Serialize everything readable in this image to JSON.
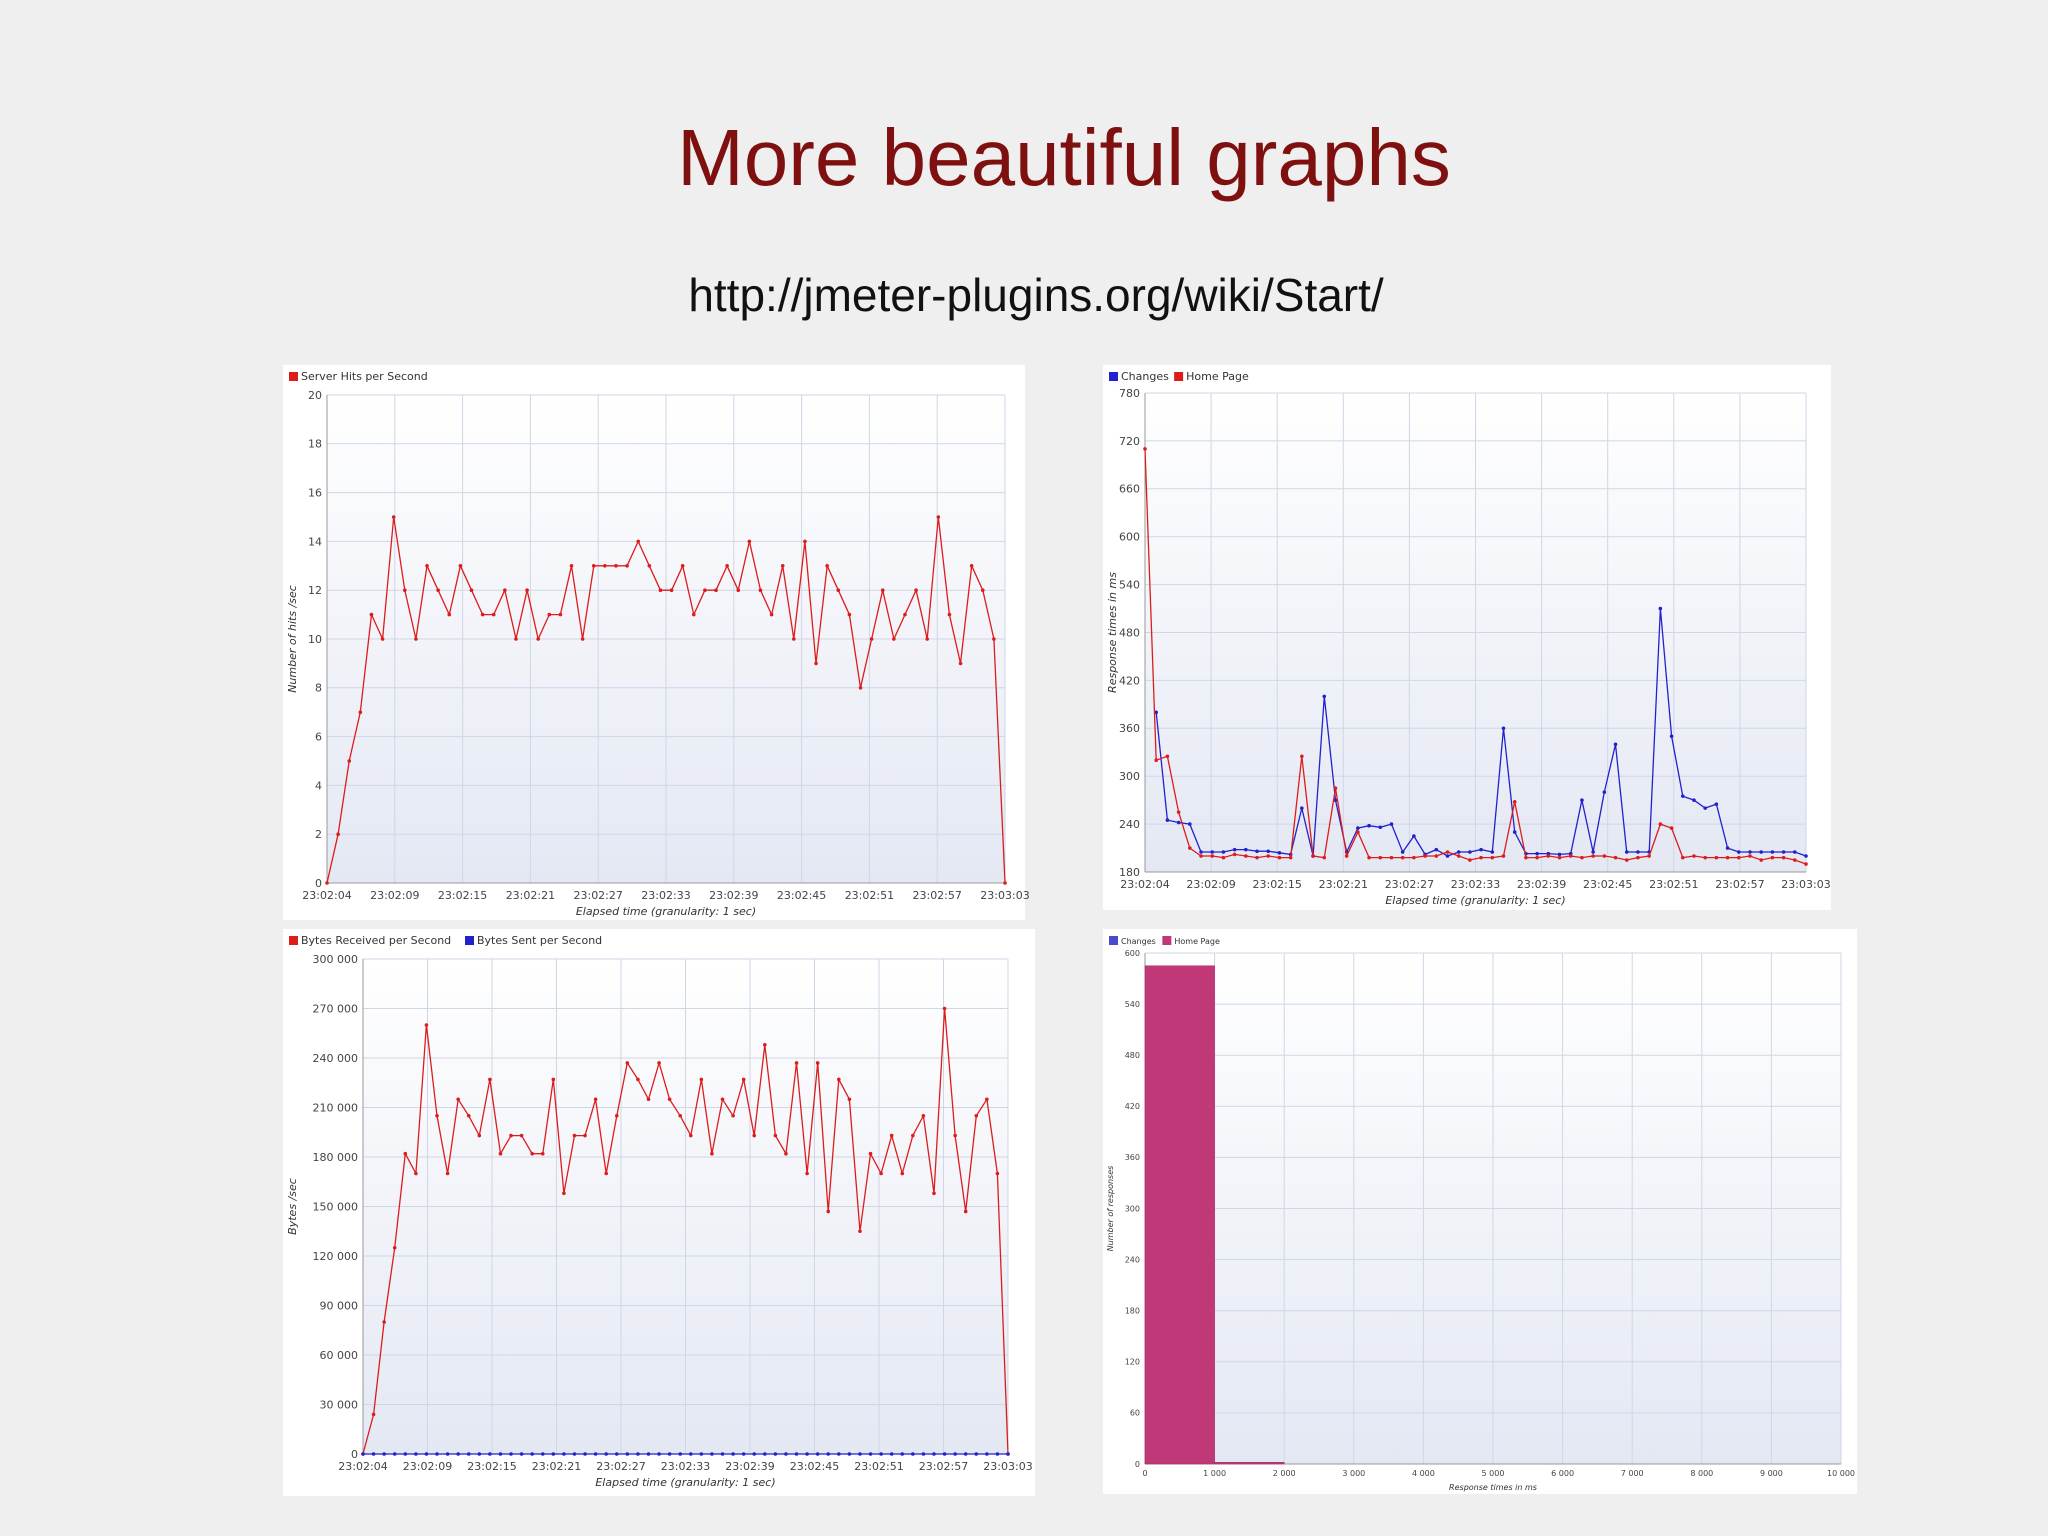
{
  "slide": {
    "title": "More beautiful graphs",
    "url": "http://jmeter-plugins.org/wiki/Start/"
  },
  "chart_data": [
    {
      "type": "line",
      "legend_position": "top-left",
      "ylabel": "Number of hits /sec",
      "xlabel": "Elapsed time (granularity: 1 sec)",
      "ylim": [
        0,
        20
      ],
      "yticks": [
        0,
        2,
        4,
        6,
        8,
        10,
        12,
        14,
        16,
        18,
        20
      ],
      "ytick_labels": [
        "0",
        "2",
        "4",
        "6",
        "8",
        "10",
        "12",
        "14",
        "16",
        "18",
        "20"
      ],
      "xtick_labels": [
        "23:02:04",
        "23:02:09",
        "23:02:15",
        "23:02:21",
        "23:02:27",
        "23:02:33",
        "23:02:39",
        "23:02:45",
        "23:02:51",
        "23:02:57",
        "23:03:03"
      ],
      "grid": true,
      "series": [
        {
          "name": "Server Hits per Second",
          "color": "#dd1c1c",
          "values": [
            0,
            2,
            5,
            7,
            11,
            10,
            15,
            12,
            10,
            13,
            12,
            11,
            13,
            12,
            11,
            11,
            12,
            10,
            12,
            10,
            11,
            11,
            13,
            10,
            13,
            13,
            13,
            13,
            14,
            13,
            12,
            12,
            13,
            11,
            12,
            12,
            13,
            12,
            14,
            12,
            11,
            13,
            10,
            14,
            9,
            13,
            12,
            11,
            8,
            10,
            12,
            10,
            11,
            12,
            10,
            15,
            11,
            9,
            13,
            12,
            10,
            0
          ]
        }
      ]
    },
    {
      "type": "line",
      "legend_position": "top-left",
      "ylabel": "Response times in ms",
      "xlabel": "Elapsed time (granularity: 1 sec)",
      "ylim": [
        180,
        780
      ],
      "yticks": [
        180,
        240,
        300,
        360,
        420,
        480,
        540,
        600,
        660,
        720,
        780
      ],
      "ytick_labels": [
        "180",
        "240",
        "300",
        "360",
        "420",
        "480",
        "540",
        "600",
        "660",
        "720",
        "780"
      ],
      "xtick_labels": [
        "23:02:04",
        "23:02:09",
        "23:02:15",
        "23:02:21",
        "23:02:27",
        "23:02:33",
        "23:02:39",
        "23:02:45",
        "23:02:51",
        "23:02:57",
        "23:03:03"
      ],
      "grid": true,
      "series": [
        {
          "name": "Changes",
          "color": "#2222cc",
          "values": [
            null,
            380,
            245,
            242,
            240,
            205,
            205,
            205,
            208,
            208,
            206,
            206,
            204,
            202,
            260,
            200,
            400,
            270,
            205,
            235,
            238,
            236,
            240,
            205,
            225,
            202,
            208,
            200,
            205,
            205,
            208,
            205,
            360,
            230,
            203,
            203,
            203,
            202,
            203,
            270,
            205,
            280,
            340,
            205,
            205,
            205,
            510,
            350,
            275,
            270,
            260,
            265,
            210,
            205,
            205,
            205,
            205,
            205,
            205,
            200
          ]
        },
        {
          "name": "Home Page",
          "color": "#dd1c1c",
          "values": [
            710,
            320,
            325,
            255,
            210,
            200,
            200,
            198,
            202,
            200,
            198,
            200,
            198,
            198,
            325,
            200,
            198,
            285,
            200,
            230,
            198,
            198,
            198,
            198,
            198,
            200,
            200,
            205,
            200,
            195,
            198,
            198,
            200,
            268,
            198,
            198,
            200,
            198,
            200,
            198,
            200,
            200,
            198,
            195,
            198,
            200,
            240,
            235,
            198,
            200,
            198,
            198,
            198,
            198,
            200,
            195,
            198,
            198,
            195,
            190
          ]
        }
      ]
    },
    {
      "type": "line",
      "legend_position": "top-left",
      "ylabel": "Bytes /sec",
      "xlabel": "Elapsed time (granularity: 1 sec)",
      "ylim": [
        0,
        300000
      ],
      "yticks": [
        0,
        30000,
        60000,
        90000,
        120000,
        150000,
        180000,
        210000,
        240000,
        270000,
        300000
      ],
      "ytick_labels": [
        "0",
        "30 000",
        "60 000",
        "90 000",
        "120 000",
        "150 000",
        "180 000",
        "210 000",
        "240 000",
        "270 000",
        "300 000"
      ],
      "xtick_labels": [
        "23:02:04",
        "23:02:09",
        "23:02:15",
        "23:02:21",
        "23:02:27",
        "23:02:33",
        "23:02:39",
        "23:02:45",
        "23:02:51",
        "23:02:57",
        "23:03:03"
      ],
      "grid": true,
      "series": [
        {
          "name": "Bytes Received per Second",
          "color": "#dd1c1c",
          "values": [
            0,
            24000,
            80000,
            125000,
            182000,
            170000,
            260000,
            205000,
            170000,
            215000,
            205000,
            193000,
            227000,
            182000,
            193000,
            193000,
            182000,
            182000,
            227000,
            158000,
            193000,
            193000,
            215000,
            170000,
            205000,
            237000,
            227000,
            215000,
            237000,
            215000,
            205000,
            193000,
            227000,
            182000,
            215000,
            205000,
            227000,
            193000,
            248000,
            193000,
            182000,
            237000,
            170000,
            237000,
            147000,
            227000,
            215000,
            135000,
            182000,
            170000,
            193000,
            170000,
            193000,
            205000,
            158000,
            270000,
            193000,
            147000,
            205000,
            215000,
            170000,
            0
          ]
        },
        {
          "name": "Bytes Sent per Second",
          "color": "#2222cc",
          "values": [
            0,
            0,
            0,
            0,
            0,
            0,
            0,
            0,
            0,
            0,
            0,
            0,
            0,
            0,
            0,
            0,
            0,
            0,
            0,
            0,
            0,
            0,
            0,
            0,
            0,
            0,
            0,
            0,
            0,
            0,
            0,
            0,
            0,
            0,
            0,
            0,
            0,
            0,
            0,
            0,
            0,
            0,
            0,
            0,
            0,
            0,
            0,
            0,
            0,
            0,
            0,
            0,
            0,
            0,
            0,
            0,
            0,
            0,
            0,
            0,
            0,
            0
          ]
        }
      ]
    },
    {
      "type": "bar",
      "legend_position": "top-left",
      "ylabel": "Number of responses",
      "xlabel": "Response times in ms",
      "ylim": [
        0,
        600
      ],
      "yticks": [
        0,
        60,
        120,
        180,
        240,
        300,
        360,
        420,
        480,
        540,
        600
      ],
      "ytick_labels": [
        "0",
        "60",
        "120",
        "180",
        "240",
        "300",
        "360",
        "420",
        "480",
        "540",
        "600"
      ],
      "xlim": [
        0,
        10000
      ],
      "xticks": [
        0,
        1000,
        2000,
        3000,
        4000,
        5000,
        6000,
        7000,
        8000,
        9000,
        10000
      ],
      "xtick_labels": [
        "0",
        "1 000",
        "2 000",
        "3 000",
        "4 000",
        "5 000",
        "6 000",
        "7 000",
        "8 000",
        "9 000",
        "10 000"
      ],
      "grid": true,
      "series": [
        {
          "name": "Changes",
          "color": "#4a4acc",
          "bins": []
        },
        {
          "name": "Home Page",
          "color": "#c03878",
          "bins": [
            {
              "x0": 0,
              "x1": 1000,
              "value": 585
            },
            {
              "x0": 1000,
              "x1": 2000,
              "value": 2
            }
          ]
        }
      ]
    }
  ]
}
